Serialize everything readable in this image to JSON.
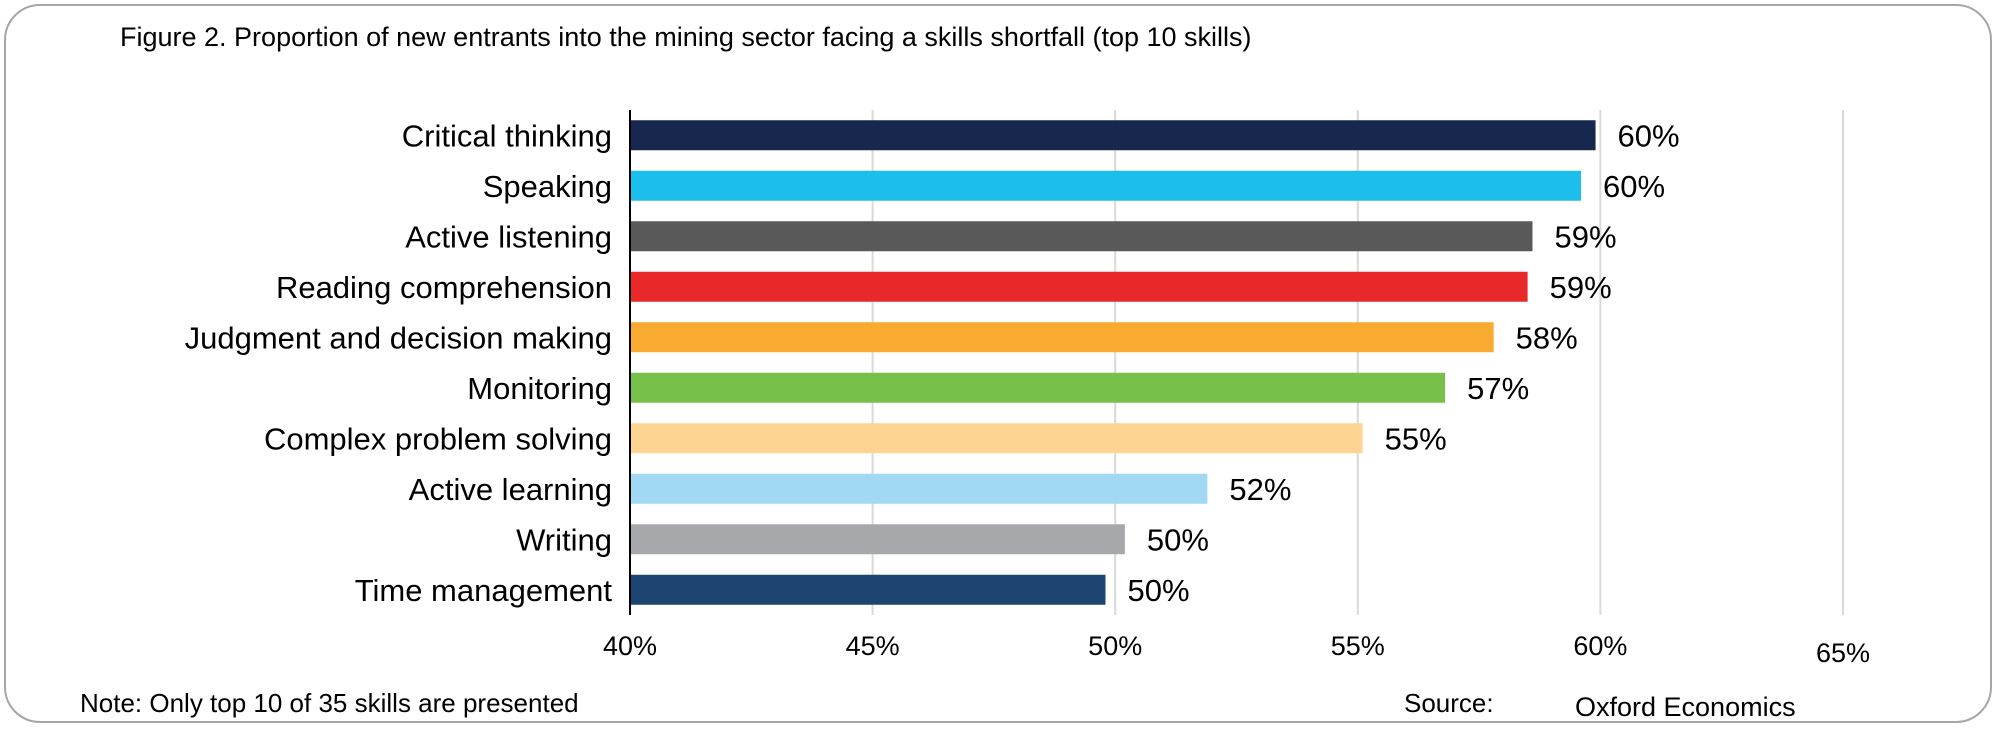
{
  "title": "Figure 2. Proportion of new entrants into the mining sector facing a skills shortfall (top 10 skills)",
  "note": "Note: Only top 10 of 35 skills are presented",
  "source_label": "Source:",
  "source_value": "Oxford Economics",
  "chart_data": {
    "type": "bar",
    "orientation": "horizontal",
    "title": "Figure 2. Proportion of new entrants into the mining sector facing a skills shortfall (top 10 skills)",
    "categories": [
      "Critical thinking",
      "Speaking",
      "Active listening",
      "Reading comprehension",
      "Judgment and decision making",
      "Monitoring",
      "Complex problem solving",
      "Active learning",
      "Writing",
      "Time management"
    ],
    "values": [
      59.9,
      59.6,
      58.6,
      58.5,
      57.8,
      56.8,
      55.1,
      51.9,
      50.2,
      49.8
    ],
    "value_labels": [
      "60%",
      "60%",
      "59%",
      "59%",
      "58%",
      "57%",
      "55%",
      "52%",
      "50%",
      "50%"
    ],
    "colors": [
      "#17274d",
      "#1cbfec",
      "#595959",
      "#e9282a",
      "#f9aa30",
      "#77c04a",
      "#fed492",
      "#a1d9f5",
      "#a6a8ab",
      "#1c4572"
    ],
    "xlim": [
      40,
      65
    ],
    "xticks": [
      40,
      45,
      50,
      55,
      60,
      65
    ],
    "xtick_labels": [
      "40%",
      "45%",
      "50%",
      "55%",
      "60%",
      "65%"
    ],
    "grid": "vertical",
    "xlabel": "",
    "ylabel": ""
  }
}
